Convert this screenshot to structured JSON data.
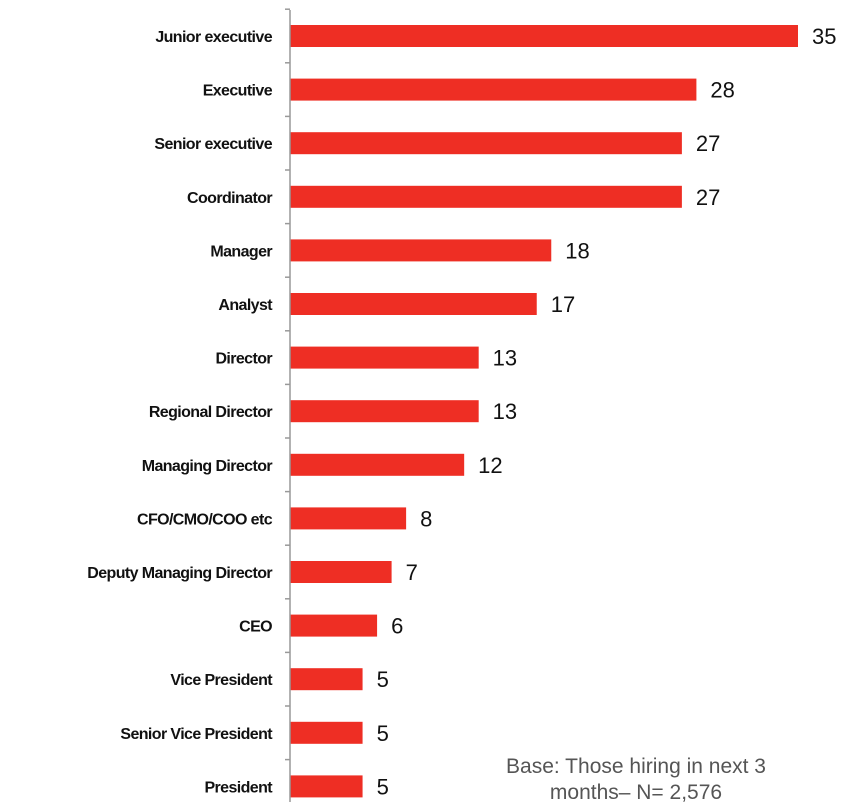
{
  "chart_data": {
    "type": "bar",
    "orientation": "horizontal",
    "categories": [
      "Junior executive",
      "Executive",
      "Senior executive",
      "Coordinator",
      "Manager",
      "Analyst",
      "Director",
      "Regional Director",
      "Managing Director",
      "CFO/CMO/COO etc",
      "Deputy Managing Director",
      "CEO",
      "Vice President",
      "Senior Vice President",
      "President"
    ],
    "values": [
      35,
      28,
      27,
      27,
      18,
      17,
      13,
      13,
      12,
      8,
      7,
      6,
      5,
      5,
      5
    ],
    "bar_color": "#ee2e24",
    "axis_color": "#999999",
    "title": "",
    "xlabel": "",
    "ylabel": "",
    "xlim": [
      0,
      35
    ],
    "grid": false,
    "legend": "none",
    "data_labels": true
  },
  "footnote": {
    "line1": "Base: Those hiring in next 3",
    "line2": "months– N= 2,576"
  }
}
